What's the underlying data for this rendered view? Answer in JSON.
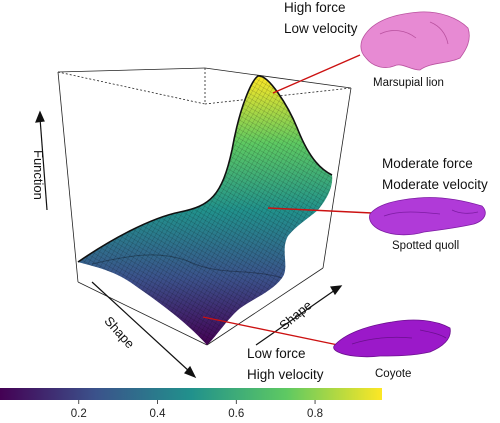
{
  "axes": {
    "function_label": "Function",
    "shape_left_label": "Shape",
    "shape_right_label": "Shape"
  },
  "annotations": {
    "top": {
      "line1": "High force",
      "line2": "Low velocity",
      "caption": "Marsupial lion"
    },
    "middle": {
      "line1": "Moderate force",
      "line2": "Moderate velocity",
      "caption": "Spotted quoll"
    },
    "bottom": {
      "line1": "Low force",
      "line2": "High velocity",
      "caption": "Coyote"
    }
  },
  "colorbar": {
    "ticks": [
      "0.2",
      "0.4",
      "0.6",
      "0.8"
    ],
    "tick_values": [
      0.2,
      0.4,
      0.6,
      0.8
    ],
    "range": [
      0.0,
      0.97
    ],
    "palette": [
      "#440154",
      "#3b528b",
      "#21918c",
      "#5ec962",
      "#fde725"
    ]
  },
  "colors": {
    "annotation_line": "#cc1111",
    "skull_pink": "#e78ad3",
    "skull_violet": "#b03ad8",
    "skull_purple": "#9b19c9"
  }
}
